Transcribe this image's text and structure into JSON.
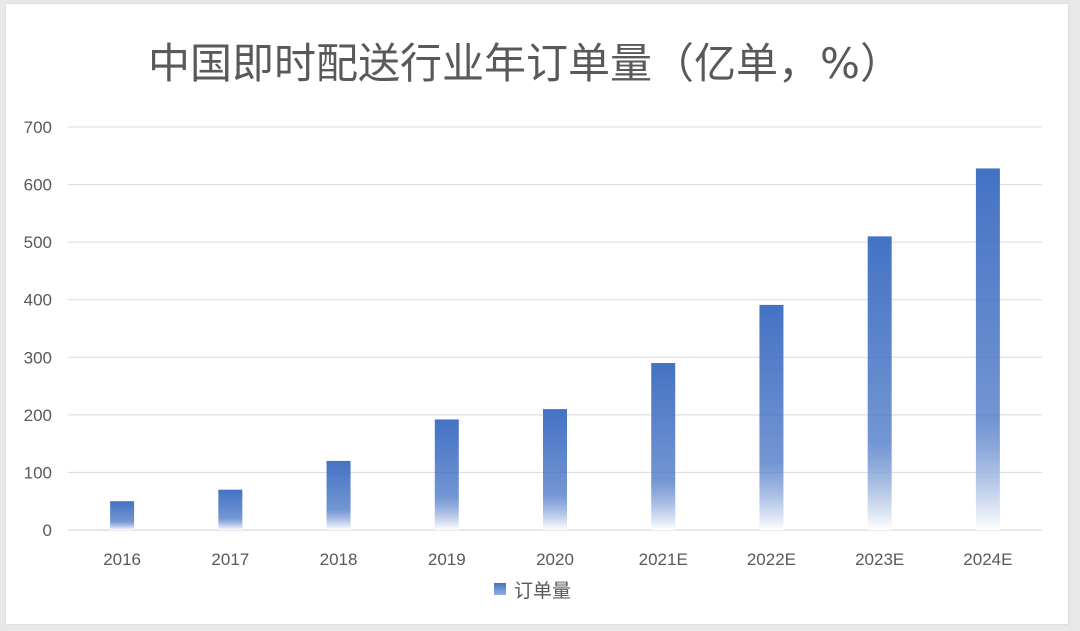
{
  "chart_data": {
    "type": "bar",
    "title": "中国即时配送行业年订单量（亿单，%）",
    "categories": [
      "2016",
      "2017",
      "2018",
      "2019",
      "2020",
      "2021E",
      "2022E",
      "2023E",
      "2024E"
    ],
    "series": [
      {
        "name": "订单量",
        "values": [
          50,
          70,
          120,
          192,
          210,
          290,
          391,
          510,
          628
        ]
      }
    ],
    "xlabel": "",
    "ylabel": "",
    "ylim": [
      0,
      700
    ],
    "yticks": [
      0,
      100,
      200,
      300,
      400,
      500,
      600,
      700
    ],
    "grid": true,
    "legend": "bottom",
    "bar_color": "#4472C4",
    "bar_fade_color": "#ffffff"
  }
}
